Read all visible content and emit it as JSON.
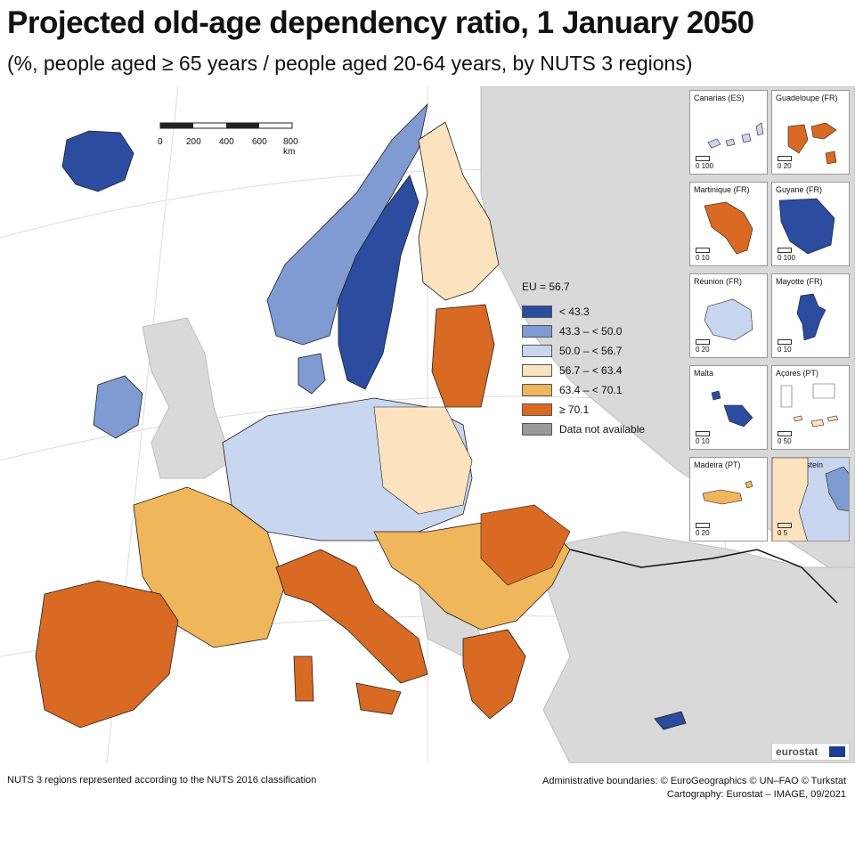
{
  "title": "Projected old-age dependency ratio, 1 January 2050",
  "subtitle": "(%, people aged ≥ 65 years / people aged 20-64 years, by NUTS 3 regions)",
  "scale": {
    "labels": [
      "0",
      "200",
      "400",
      "600",
      "800 km"
    ]
  },
  "legend": {
    "eu_value": "EU = 56.7",
    "items": [
      {
        "label": "< 43.3",
        "color": "#2b4c9f"
      },
      {
        "label": "43.3 – < 50.0",
        "color": "#7f9bd2"
      },
      {
        "label": "50.0 – < 56.7",
        "color": "#c8d6ef"
      },
      {
        "label": "56.7 – < 63.4",
        "color": "#fbe3c0"
      },
      {
        "label": "63.4 – < 70.1",
        "color": "#efb65c"
      },
      {
        "label": "≥ 70.1",
        "color": "#d96a23"
      },
      {
        "label": "Data not available",
        "color": "#9a9a9a"
      }
    ]
  },
  "insets": [
    {
      "name": "Canarias (ES)",
      "scale": "0 100"
    },
    {
      "name": "Guadeloupe (FR)",
      "scale": "0 20"
    },
    {
      "name": "Martinique (FR)",
      "scale": "0 10"
    },
    {
      "name": "Guyane (FR)",
      "scale": "0 100"
    },
    {
      "name": "Réunion (FR)",
      "scale": "0 20"
    },
    {
      "name": "Mayotte (FR)",
      "scale": "0 10"
    },
    {
      "name": "Malta",
      "scale": "0 10"
    },
    {
      "name": "Açores (PT)",
      "scale": "0 50"
    },
    {
      "name": "Madeira (PT)",
      "scale": "0 20"
    },
    {
      "name": "Liechtenstein",
      "scale": "0 5"
    }
  ],
  "logo": "eurostat",
  "footer": {
    "left": "NUTS 3 regions represented according to the NUTS 2016 classification",
    "right_line1": "Administrative boundaries: © EuroGeographics © UN–FAO © Turkstat",
    "right_line2": "Cartography: Eurostat – IMAGE, 09/2021"
  }
}
